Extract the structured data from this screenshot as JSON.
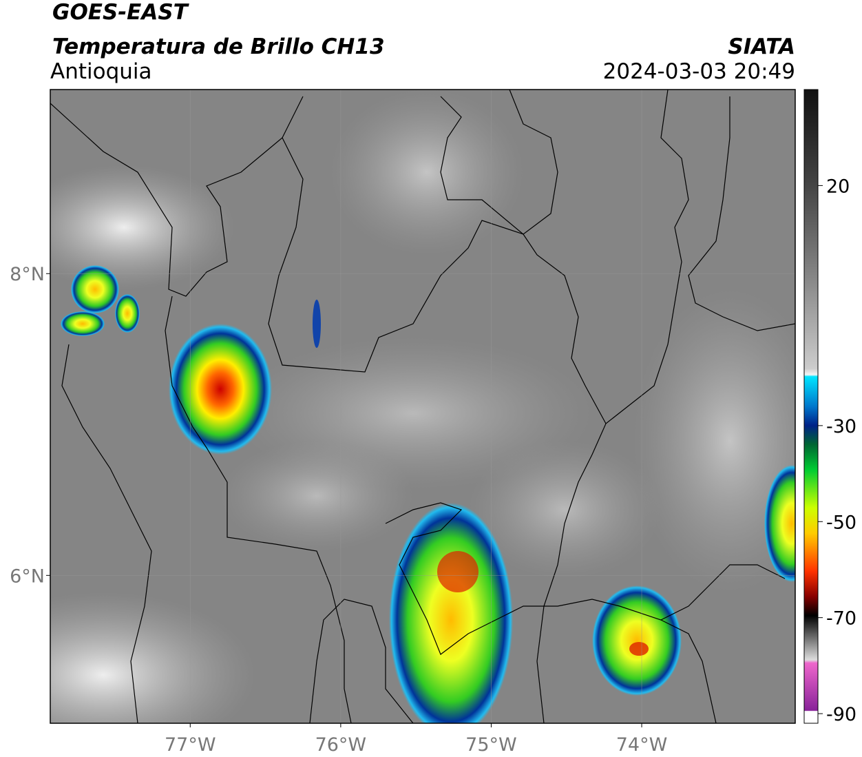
{
  "header": {
    "title": "GOES-EAST",
    "subtitle": "Temperatura de Brillo CH13",
    "region": "Antioquia",
    "source": "SIATA",
    "datetime": "2024-03-03 20:49"
  },
  "map": {
    "xlim": [
      -77.93,
      -72.98
    ],
    "ylim": [
      5.02,
      9.22
    ],
    "xticks": [
      {
        "value": -77,
        "label": "77°W"
      },
      {
        "value": -76,
        "label": "76°W"
      },
      {
        "value": -75,
        "label": "75°W"
      },
      {
        "value": -74,
        "label": "74°W"
      }
    ],
    "yticks": [
      {
        "value": 8,
        "label": "8°N"
      },
      {
        "value": 6,
        "label": "6°N"
      }
    ],
    "grid": true
  },
  "colorbar": {
    "lim": [
      -92,
      40
    ],
    "ticks": [
      20,
      -30,
      -50,
      -70,
      -90
    ]
  }
}
